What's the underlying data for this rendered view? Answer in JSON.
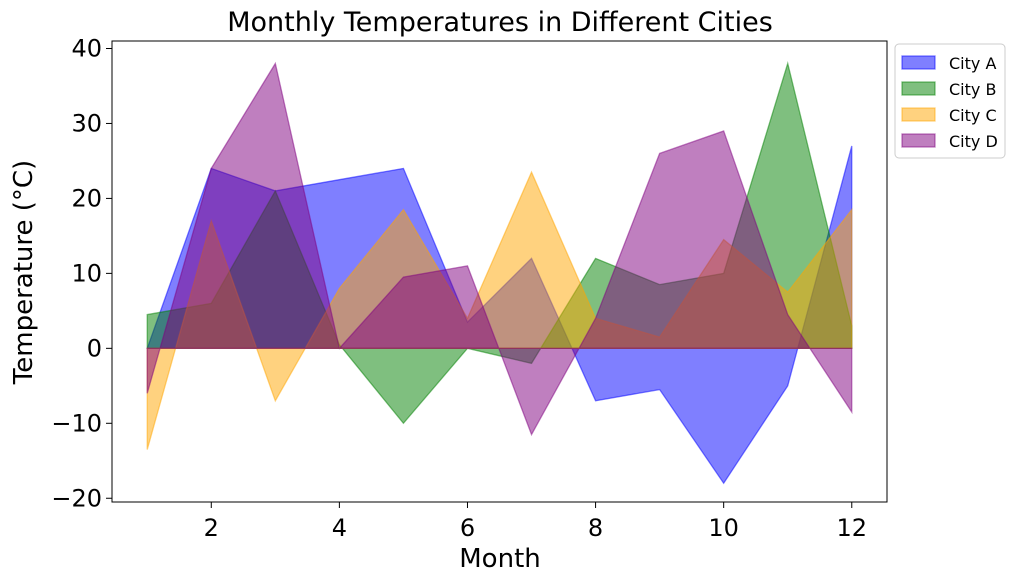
{
  "chart_data": {
    "type": "area",
    "title": "Monthly Temperatures in Different Cities",
    "xlabel": "Month",
    "ylabel": "Temperature (°C)",
    "x": [
      1,
      2,
      3,
      4,
      5,
      6,
      7,
      8,
      9,
      10,
      11,
      12
    ],
    "xlim": [
      0.45,
      12.55
    ],
    "ylim": [
      -20.5,
      41
    ],
    "xticks": [
      2,
      4,
      6,
      8,
      10,
      12
    ],
    "yticks": [
      -20,
      -10,
      0,
      10,
      20,
      30,
      40
    ],
    "xtick_labels": [
      "2",
      "4",
      "6",
      "8",
      "10",
      "12"
    ],
    "ytick_labels": [
      "−20",
      "−10",
      "0",
      "10",
      "20",
      "30",
      "40"
    ],
    "grid": false,
    "legend_position": "outside-top-right",
    "series": [
      {
        "name": "City A",
        "color": "#0000ff",
        "values": [
          0,
          24,
          21,
          22.5,
          24,
          3.5,
          12,
          -7,
          -5.5,
          -18,
          -5,
          27
        ]
      },
      {
        "name": "City B",
        "color": "#008000",
        "values": [
          4.5,
          6,
          21,
          0.5,
          -10,
          0,
          -2,
          12,
          8.5,
          10,
          38,
          3
        ]
      },
      {
        "name": "City C",
        "color": "#ffa500",
        "values": [
          -13.5,
          17,
          -7,
          8,
          18.5,
          4,
          23.5,
          4,
          1.5,
          14.5,
          7.5,
          18.5
        ]
      },
      {
        "name": "City D",
        "color": "#800080",
        "values": [
          -6,
          24,
          38,
          0,
          9.5,
          11,
          -11.5,
          4,
          26,
          29,
          4.5,
          -8.5
        ]
      }
    ]
  }
}
